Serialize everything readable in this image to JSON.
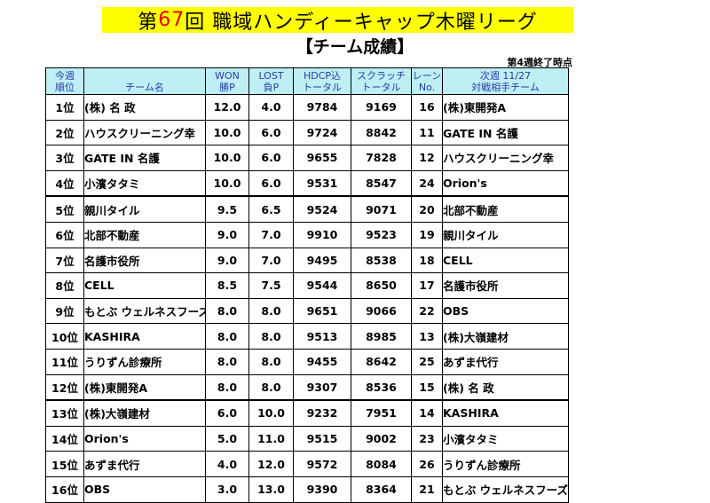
{
  "title": {
    "prefix": "第",
    "number": "67",
    "suffix": "回 職域ハンディーキャップ木曜リーグ"
  },
  "subtitle": "【チーム成績】",
  "as_of": "第4週終了時点",
  "headers": {
    "rank": [
      "今週",
      "順位"
    ],
    "team": [
      "",
      "チーム名"
    ],
    "won": [
      "WON",
      "勝P"
    ],
    "lost": [
      "LOST",
      "負P"
    ],
    "hdcp": [
      "HDCP込",
      "トータル"
    ],
    "scratch": [
      "スクラッチ",
      "トータル"
    ],
    "lane": [
      "レーン",
      "No."
    ],
    "opponent": [
      "次週 11/27",
      "対戦相手チーム"
    ]
  },
  "rows": [
    {
      "rank": "1位",
      "team": "(株) 名 政",
      "won": "12.0",
      "lost": "4.0",
      "hdcp": "9784",
      "scratch": "9169",
      "lane": "16",
      "opponent": "(株)東開発A"
    },
    {
      "rank": "2位",
      "team": "ハウスクリーニング幸",
      "won": "10.0",
      "lost": "6.0",
      "hdcp": "9724",
      "scratch": "8842",
      "lane": "11",
      "opponent": "GATE IN 名護"
    },
    {
      "rank": "3位",
      "team": "GATE IN 名護",
      "won": "10.0",
      "lost": "6.0",
      "hdcp": "9655",
      "scratch": "7828",
      "lane": "12",
      "opponent": "ハウスクリーニング幸"
    },
    {
      "rank": "4位",
      "team": "小濱タタミ",
      "won": "10.0",
      "lost": "6.0",
      "hdcp": "9531",
      "scratch": "8547",
      "lane": "24",
      "opponent": "Orion's"
    },
    {
      "rank": "5位",
      "team": "親川タイル",
      "won": "9.5",
      "lost": "6.5",
      "hdcp": "9524",
      "scratch": "9071",
      "lane": "20",
      "opponent": "北部不動産"
    },
    {
      "rank": "6位",
      "team": "北部不動産",
      "won": "9.0",
      "lost": "7.0",
      "hdcp": "9910",
      "scratch": "9523",
      "lane": "19",
      "opponent": "親川タイル"
    },
    {
      "rank": "7位",
      "team": "名護市役所",
      "won": "9.0",
      "lost": "7.0",
      "hdcp": "9495",
      "scratch": "8538",
      "lane": "18",
      "opponent": "CELL"
    },
    {
      "rank": "8位",
      "team": "CELL",
      "won": "8.5",
      "lost": "7.5",
      "hdcp": "9544",
      "scratch": "8650",
      "lane": "17",
      "opponent": "名護市役所"
    },
    {
      "rank": "9位",
      "team": "もとぶ ウェルネスフーズ",
      "won": "8.0",
      "lost": "8.0",
      "hdcp": "9651",
      "scratch": "9066",
      "lane": "22",
      "opponent": "OBS"
    },
    {
      "rank": "10位",
      "team": "KASHIRA",
      "won": "8.0",
      "lost": "8.0",
      "hdcp": "9513",
      "scratch": "8985",
      "lane": "13",
      "opponent": "(株)大嶺建材"
    },
    {
      "rank": "11位",
      "team": "うりずん診療所",
      "won": "8.0",
      "lost": "8.0",
      "hdcp": "9455",
      "scratch": "8642",
      "lane": "25",
      "opponent": "あずま代行"
    },
    {
      "rank": "12位",
      "team": "(株)東開発A",
      "won": "8.0",
      "lost": "8.0",
      "hdcp": "9307",
      "scratch": "8536",
      "lane": "15",
      "opponent": "(株) 名 政"
    },
    {
      "rank": "13位",
      "team": "(株)大嶺建材",
      "won": "6.0",
      "lost": "10.0",
      "hdcp": "9232",
      "scratch": "7951",
      "lane": "14",
      "opponent": "KASHIRA"
    },
    {
      "rank": "14位",
      "team": "Orion's",
      "won": "5.0",
      "lost": "11.0",
      "hdcp": "9515",
      "scratch": "9002",
      "lane": "23",
      "opponent": "小濱タタミ"
    },
    {
      "rank": "15位",
      "team": "あずま代行",
      "won": "4.0",
      "lost": "12.0",
      "hdcp": "9572",
      "scratch": "8084",
      "lane": "26",
      "opponent": "うりずん診療所"
    },
    {
      "rank": "16位",
      "team": "OBS",
      "won": "3.0",
      "lost": "13.0",
      "hdcp": "9390",
      "scratch": "8364",
      "lane": "21",
      "opponent": "もとぶ ウェルネスフーズ"
    }
  ],
  "colors": {
    "title_bg": "#ffff00",
    "title_number": "#e00000",
    "header_bg": "#bdeff5",
    "header_text": "#2a3aa8"
  }
}
